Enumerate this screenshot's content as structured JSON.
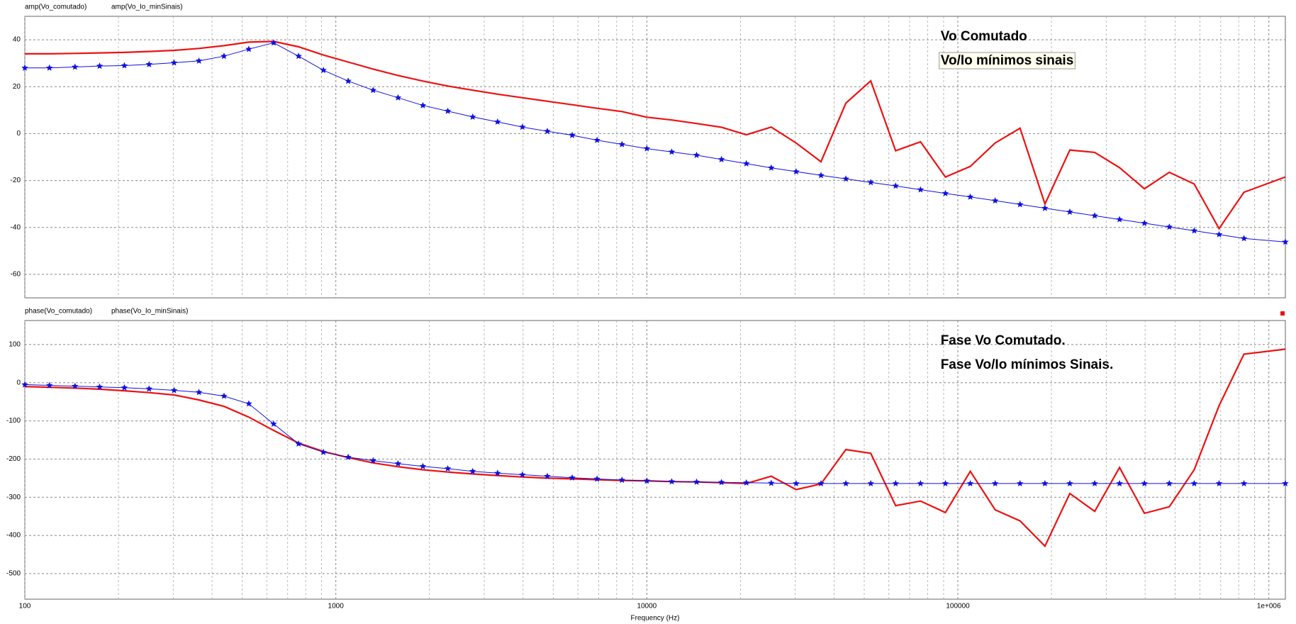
{
  "chart_data": [
    {
      "type": "line",
      "xscale": "log",
      "grid": true,
      "show_xticklabels": false,
      "xlim": [
        100,
        1130000
      ],
      "xticks": [
        100,
        1000,
        10000,
        100000,
        1000000
      ],
      "xminor": [
        200,
        300,
        400,
        500,
        600,
        700,
        800,
        900,
        2000,
        3000,
        4000,
        5000,
        6000,
        7000,
        8000,
        9000,
        20000,
        30000,
        40000,
        50000,
        60000,
        70000,
        80000,
        90000,
        200000,
        300000,
        400000,
        500000,
        600000,
        700000,
        800000,
        900000
      ],
      "ylim": [
        -70,
        50
      ],
      "yticks": [
        -60,
        -40,
        -20,
        0,
        20,
        40
      ],
      "x": [
        100,
        120,
        145,
        174,
        209,
        251,
        302,
        363,
        437,
        525,
        631,
        759,
        912,
        1096,
        1318,
        1585,
        1905,
        2291,
        2754,
        3311,
        3981,
        4786,
        5754,
        6918,
        8318,
        10000,
        12023,
        14454,
        17378,
        20893,
        25119,
        30200,
        36308,
        43652,
        52481,
        63096,
        75858,
        91201,
        109648,
        131826,
        158489,
        190546,
        229087,
        275423,
        331131,
        398107,
        478630,
        575440,
        691831,
        831764,
        1130000
      ],
      "series": [
        {
          "name": "amp(Vo_comutado)",
          "color": "#ee1111",
          "marker": "none",
          "values": [
            34,
            34,
            34.2,
            34.4,
            34.6,
            35,
            35.5,
            36.3,
            37.5,
            39,
            39.3,
            37,
            33.5,
            30.5,
            27.5,
            24.8,
            22.4,
            20.3,
            18.5,
            16.8,
            15.3,
            13.8,
            12.3,
            10.8,
            9.4,
            7,
            5.8,
            4.3,
            2.7,
            -0.5,
            2.8,
            -4,
            -12,
            13,
            22.5,
            -7.3,
            -3.5,
            -18.5,
            -14,
            -4,
            2.3,
            -30,
            -7,
            -8,
            -14.5,
            -23.5,
            -16.5,
            -21.5,
            -40.5,
            -25,
            -18.5
          ]
        },
        {
          "name": "amp(Vo_Io_minSinais)",
          "color": "#1111dd",
          "marker": "star",
          "values": [
            28,
            28,
            28.4,
            28.8,
            29,
            29.5,
            30.2,
            31,
            33,
            36,
            38.7,
            33,
            27,
            22.4,
            18.5,
            15.3,
            12,
            9.6,
            7.1,
            5,
            2.8,
            1,
            -0.7,
            -2.8,
            -4.6,
            -6.4,
            -7.8,
            -9.2,
            -11,
            -12.8,
            -14.6,
            -16.2,
            -17.8,
            -19.3,
            -20.8,
            -22.3,
            -23.9,
            -25.5,
            -27,
            -28.6,
            -30.2,
            -31.8,
            -33.4,
            -35,
            -36.6,
            -38.2,
            -39.8,
            -41.4,
            -43,
            -44.7,
            -46.2
          ]
        }
      ],
      "annotations": [
        {
          "text": "Vo Comutado",
          "color": "#ee1111",
          "box": false
        },
        {
          "text": "Vo/Io mínimos sinais",
          "color": "#1111dd",
          "box": true
        }
      ]
    },
    {
      "type": "line",
      "xscale": "log",
      "grid": true,
      "show_xticklabels": true,
      "xlabel": "Frequency (Hz)",
      "xlim": [
        100,
        1130000
      ],
      "xticks": [
        100,
        1000,
        10000,
        100000,
        {
          "value": 1000000,
          "label": "1e+006"
        }
      ],
      "xminor": [
        200,
        300,
        400,
        500,
        600,
        700,
        800,
        900,
        2000,
        3000,
        4000,
        5000,
        6000,
        7000,
        8000,
        9000,
        20000,
        30000,
        40000,
        50000,
        60000,
        70000,
        80000,
        90000,
        200000,
        300000,
        400000,
        500000,
        600000,
        700000,
        800000,
        900000
      ],
      "ylim": [
        -567,
        163
      ],
      "yticks": [
        -500,
        -400,
        -300,
        -200,
        -100,
        0,
        100
      ],
      "x": [
        100,
        120,
        145,
        174,
        209,
        251,
        302,
        363,
        437,
        525,
        631,
        759,
        912,
        1096,
        1318,
        1585,
        1905,
        2291,
        2754,
        3311,
        3981,
        4786,
        5754,
        6918,
        8318,
        10000,
        12023,
        14454,
        17378,
        20893,
        25119,
        30200,
        36308,
        43652,
        52481,
        63096,
        75858,
        91201,
        109648,
        131826,
        158489,
        190546,
        229087,
        275423,
        331131,
        398107,
        478630,
        575440,
        691831,
        831764,
        1130000
      ],
      "series": [
        {
          "name": "phase(Vo_comutado)",
          "color": "#ee1111",
          "marker": "none",
          "values": [
            -10,
            -12,
            -14,
            -17,
            -21,
            -26,
            -32,
            -45,
            -62,
            -90,
            -125,
            -158,
            -180,
            -196,
            -210,
            -220,
            -228,
            -234,
            -239,
            -243,
            -247,
            -250,
            -252,
            -254,
            -256,
            -257,
            -259,
            -260,
            -262,
            -264,
            -245,
            -280,
            -265,
            -175,
            -185,
            -322,
            -310,
            -340,
            -232,
            -333,
            -362,
            -428,
            -290,
            -337,
            -222,
            -342,
            -325,
            -228,
            -60,
            75,
            88
          ]
        },
        {
          "name": "phase(Vo_Io_minSinais)",
          "color": "#1111dd",
          "marker": "star",
          "values": [
            -5,
            -7,
            -9,
            -11,
            -13,
            -16,
            -20,
            -25,
            -35,
            -55,
            -108,
            -160,
            -182,
            -195,
            -204,
            -212,
            -219,
            -225,
            -232,
            -237,
            -241,
            -245,
            -249,
            -252,
            -255,
            -257,
            -259,
            -260,
            -261,
            -262,
            -263,
            -264,
            -264,
            -264,
            -264,
            -264,
            -264,
            -264,
            -264,
            -264,
            -264,
            -264,
            -264,
            -264,
            -264,
            -264,
            -264,
            -264,
            -264,
            -264,
            -264
          ]
        }
      ],
      "annotations": [
        {
          "text": "Fase Vo Comutado.",
          "color": "#ee1111",
          "box": false
        },
        {
          "text": "Fase Vo/Io mínimos Sinais.",
          "color": "#1111dd",
          "box": false
        }
      ]
    }
  ]
}
